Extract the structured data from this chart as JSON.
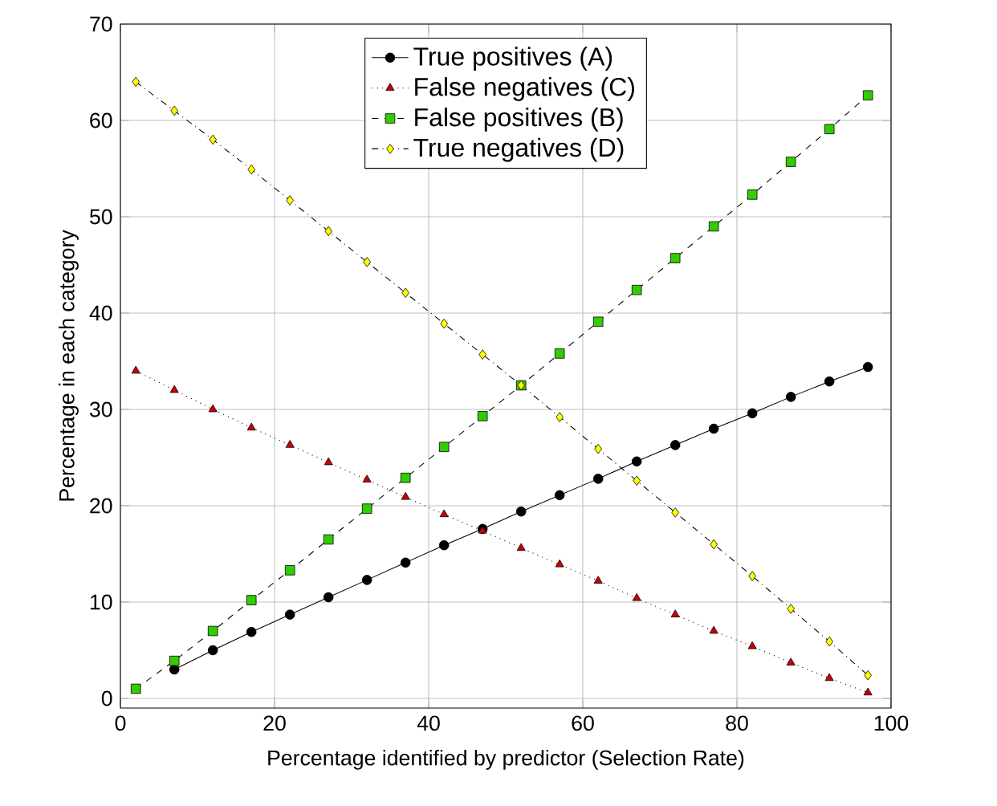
{
  "chart_data": {
    "type": "line",
    "xlabel": "Percentage identified by predictor (Selection Rate)",
    "ylabel": "Percentage in each category",
    "x": [
      2,
      7,
      12,
      17,
      22,
      27,
      32,
      37,
      42,
      47,
      52,
      57,
      62,
      67,
      72,
      77,
      82,
      87,
      92,
      97
    ],
    "series": [
      {
        "name": "True positives (A)",
        "color": "#000000",
        "marker": "circle",
        "line_style": "solid",
        "values": [
          null,
          3,
          5,
          6.9,
          8.7,
          10.5,
          12.3,
          14.1,
          15.9,
          17.6,
          19.4,
          21.1,
          22.8,
          24.6,
          26.3,
          28,
          29.6,
          31.3,
          32.9,
          34.4
        ]
      },
      {
        "name": "False negatives (C)",
        "color": "#cc0000",
        "marker": "triangle",
        "line_style": "dotted",
        "values": [
          34,
          32,
          30,
          28.1,
          26.3,
          24.5,
          22.7,
          20.9,
          19.1,
          17.4,
          15.6,
          13.9,
          12.2,
          10.4,
          8.7,
          7,
          5.4,
          3.7,
          2.1,
          0.6
        ]
      },
      {
        "name": "False positives (B)",
        "color": "#33cc00",
        "marker": "square",
        "line_style": "dashed",
        "values": [
          1,
          3.9,
          7,
          10.2,
          13.3,
          16.5,
          19.7,
          22.9,
          26.1,
          29.3,
          32.5,
          35.8,
          39.1,
          42.4,
          45.7,
          49,
          52.3,
          55.7,
          59.1,
          62.6
        ]
      },
      {
        "name": "True negatives (D)",
        "color": "#ffff00",
        "marker": "diamond",
        "line_style": "dashdot",
        "values": [
          64,
          61,
          58,
          54.9,
          51.7,
          48.5,
          45.3,
          42.1,
          38.9,
          35.7,
          32.5,
          29.2,
          25.9,
          22.6,
          19.3,
          16,
          12.7,
          9.3,
          5.9,
          2.4
        ]
      }
    ],
    "xlim": [
      0,
      100
    ],
    "xticks": [
      0,
      20,
      40,
      60,
      80,
      100
    ],
    "ylim": [
      -1,
      70
    ],
    "yticks": [
      0,
      10,
      20,
      30,
      40,
      50,
      60,
      70
    ],
    "grid": true,
    "legend": "top"
  }
}
